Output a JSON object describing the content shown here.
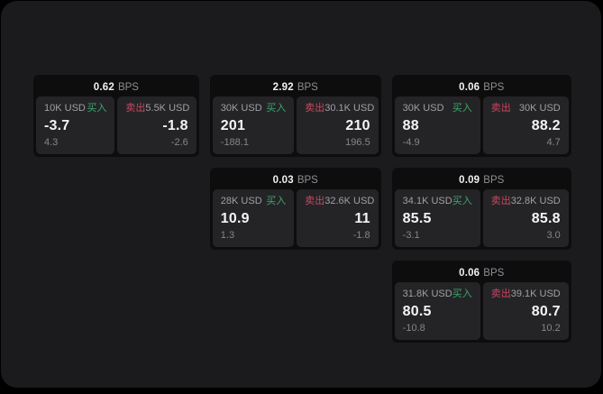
{
  "app": {
    "background_color": "#000000",
    "surface_color": "#1b1b1d"
  },
  "labels": {
    "bps_unit": "BPS",
    "buy": "买入",
    "sell": "卖出"
  },
  "colors": {
    "buy_green": "#3ea46d",
    "sell_red": "#c7485f",
    "card_bg": "#0d0d0e",
    "panel_bg": "#242427",
    "main_value_text": "#f4f4f5",
    "muted_text": "#85858a"
  },
  "cards": [
    {
      "bps": "0.62",
      "buy": {
        "amount": "10K USD",
        "price": "-3.7",
        "change": "4.3"
      },
      "sell": {
        "amount": "5.5K USD",
        "price": "-1.8",
        "change": "-2.6"
      }
    },
    {
      "bps": "2.92",
      "buy": {
        "amount": "30K USD",
        "price": "201",
        "change": "-188.1"
      },
      "sell": {
        "amount": "30.1K USD",
        "price": "210",
        "change": "196.5"
      }
    },
    {
      "bps": "0.06",
      "buy": {
        "amount": "30K USD",
        "price": "88",
        "change": "-4.9"
      },
      "sell": {
        "amount": "30K USD",
        "price": "88.2",
        "change": "4.7"
      }
    },
    {
      "bps": "0.03",
      "buy": {
        "amount": "28K USD",
        "price": "10.9",
        "change": "1.3"
      },
      "sell": {
        "amount": "32.6K USD",
        "price": "11",
        "change": "-1.8"
      }
    },
    {
      "bps": "0.09",
      "buy": {
        "amount": "34.1K USD",
        "price": "85.5",
        "change": "-3.1"
      },
      "sell": {
        "amount": "32.8K USD",
        "price": "85.8",
        "change": "3.0"
      }
    },
    {
      "bps": "0.06",
      "buy": {
        "amount": "31.8K USD",
        "price": "80.5",
        "change": "-10.8"
      },
      "sell": {
        "amount": "39.1K USD",
        "price": "80.7",
        "change": "10.2"
      }
    }
  ]
}
